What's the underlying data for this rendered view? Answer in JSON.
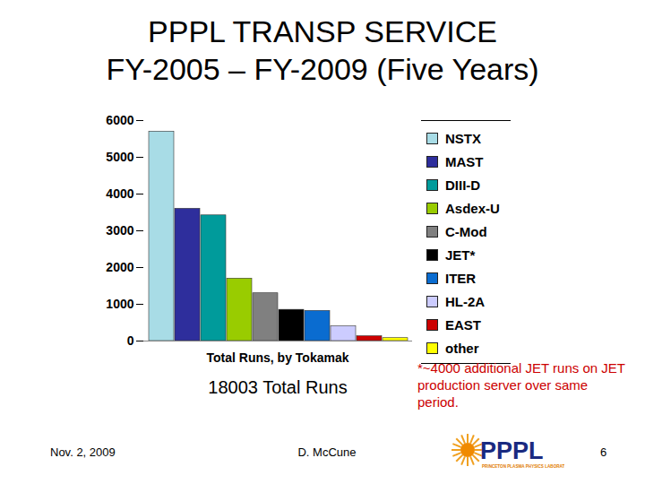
{
  "chart_data": {
    "type": "bar",
    "title": "PPPL TRANSP SERVICE",
    "subtitle": "FY-2005 – FY-2009 (Five Years)",
    "x_label": "Total Runs, by Tokamak",
    "categories": [
      "NSTX",
      "MAST",
      "DIII-D",
      "Asdex-U",
      "C-Mod",
      "JET*",
      "ITER",
      "HL-2A",
      "EAST",
      "other"
    ],
    "values": [
      5700,
      3600,
      3420,
      1700,
      1300,
      850,
      820,
      400,
      130,
      80
    ],
    "colors": [
      "#a8dce6",
      "#2e2e9c",
      "#009b9b",
      "#99cc00",
      "#808080",
      "#000000",
      "#0a6cd0",
      "#ccccff",
      "#cc0000",
      "#ffff00"
    ],
    "ylim": [
      0,
      6000
    ],
    "yticks": [
      0,
      1000,
      2000,
      3000,
      4000,
      5000,
      6000
    ],
    "grid": false,
    "legend": "right",
    "tick_labels": "y",
    "annotations": [
      "18003 Total Runs",
      "*~4000 additional JET runs on JET production server over same period."
    ]
  },
  "footer": {
    "date": "Nov. 2, 2009",
    "author": "D. McCune",
    "page": "6",
    "logo": [
      "PPPL",
      "PRINCETON PLASMA PHYSICS LABORATORY"
    ]
  }
}
